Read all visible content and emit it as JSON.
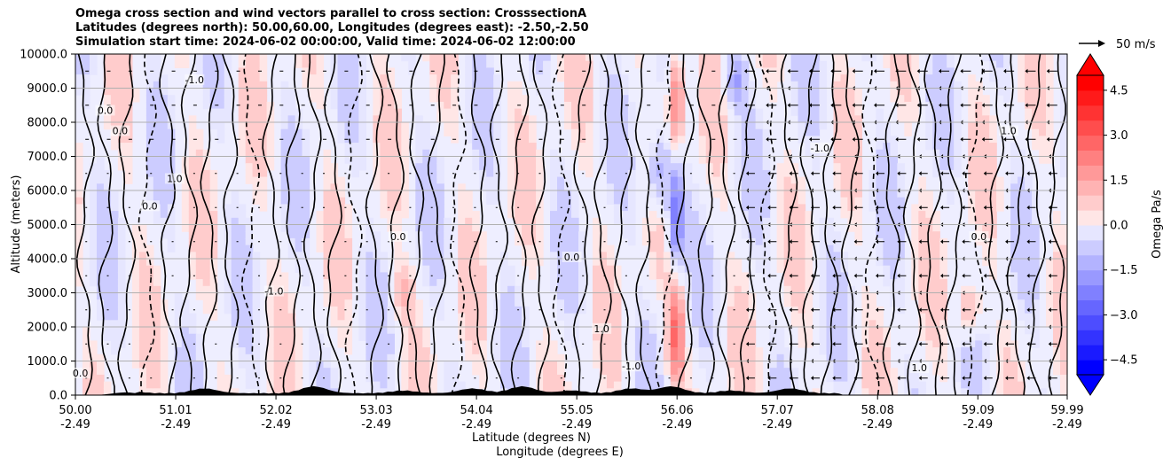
{
  "titles": {
    "line1": "Omega cross section and wind vectors parallel to cross section: CrosssectionA",
    "line2": "Latitudes (degrees north): 50.00,60.00, Longitudes (degrees east): -2.50,-2.50",
    "line3": "Simulation start time: 2024-06-02 00:00:00, Valid time: 2024-06-02 12:00:00"
  },
  "quiver_key": {
    "label": "50 m/s"
  },
  "chart_data": {
    "type": "contourf",
    "title": "Omega cross section and wind vectors parallel to cross section: CrosssectionA",
    "xlabel_lat": "Latitude (degrees N)",
    "xlabel_lon": "Longitude (degrees E)",
    "ylabel": "Altitude (meters)",
    "ylim": [
      0,
      10000
    ],
    "y_ticks": [
      "0.0",
      "1000.0",
      "2000.0",
      "3000.0",
      "4000.0",
      "5000.0",
      "6000.0",
      "7000.0",
      "8000.0",
      "9000.0",
      "10000.0"
    ],
    "x_ticks_lat": [
      "50.00",
      "51.01",
      "52.02",
      "53.03",
      "54.04",
      "55.05",
      "56.06",
      "57.07",
      "58.08",
      "59.09",
      "59.99"
    ],
    "x_ticks_lon": [
      "-2.49",
      "-2.49",
      "-2.49",
      "-2.49",
      "-2.49",
      "-2.49",
      "-2.49",
      "-2.49",
      "-2.49",
      "-2.49",
      "-2.49"
    ],
    "colorbar": {
      "label": "Omega Pa/s",
      "ticks": [
        "−4.5",
        "−3.0",
        "−1.5",
        "0.0",
        "1.5",
        "3.0",
        "4.5"
      ],
      "tick_values": [
        -4.5,
        -3.0,
        -1.5,
        0.0,
        1.5,
        3.0,
        4.5
      ],
      "range": [
        -5,
        5
      ],
      "levels": 20,
      "colors": [
        "#0000ff",
        "#1a1aff",
        "#3333ff",
        "#4d4dff",
        "#6666ff",
        "#8080ff",
        "#9999ff",
        "#b3b3ff",
        "#ccccff",
        "#e6e6ff",
        "#ffe6e6",
        "#ffcccc",
        "#ffb3b3",
        "#ff9999",
        "#ff8080",
        "#ff6666",
        "#ff4d4d",
        "#ff3333",
        "#ff1a1a",
        "#ff0000"
      ]
    },
    "contour_labels": [
      {
        "text": "0.0",
        "lat": 50.05,
        "alt": 600
      },
      {
        "text": "0.0",
        "lat": 50.3,
        "alt": 8300
      },
      {
        "text": "0.0",
        "lat": 50.45,
        "alt": 7700
      },
      {
        "text": "1.0",
        "lat": 51.0,
        "alt": 6300
      },
      {
        "text": "0.0",
        "lat": 50.75,
        "alt": 5500
      },
      {
        "text": "-1.0",
        "lat": 51.2,
        "alt": 9200
      },
      {
        "text": "0.0",
        "lat": 53.25,
        "alt": 4600
      },
      {
        "text": "-1.0",
        "lat": 52.0,
        "alt": 3000
      },
      {
        "text": "0.0",
        "lat": 55.0,
        "alt": 4000
      },
      {
        "text": "1.0",
        "lat": 55.3,
        "alt": 1900
      },
      {
        "text": "-1.0",
        "lat": 55.6,
        "alt": 800
      },
      {
        "text": "1.0",
        "lat": 58.5,
        "alt": 750
      },
      {
        "text": "-1.0",
        "lat": 57.5,
        "alt": 7200
      },
      {
        "text": "1.0",
        "lat": 59.4,
        "alt": 7700
      },
      {
        "text": "0.0",
        "lat": 59.1,
        "alt": 4600
      }
    ],
    "terrain_peaks_lat": [
      50.5,
      51.3,
      52.4,
      53.3,
      54.0,
      54.5,
      55.0,
      55.6,
      56.0,
      56.6,
      57.2
    ]
  }
}
